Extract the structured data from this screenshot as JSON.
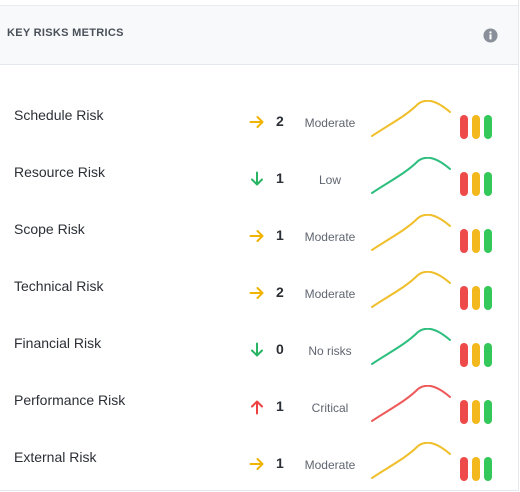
{
  "header": {
    "title": "KEY RISKS METRICS",
    "info_icon": "info-icon"
  },
  "colors": {
    "moderate": "#f0bf2c",
    "low": "#2ebf7f",
    "critical": "#ee5a5a",
    "arrow_moderate": "#f0b400",
    "arrow_low": "#28b463",
    "arrow_critical": "#ee4040",
    "bar_red": "#ee4a4a",
    "bar_yellow": "#f2b81d",
    "bar_green": "#34c759"
  },
  "risks": [
    {
      "name": "Schedule Risk",
      "trend": "right",
      "trend_icon": "arrow-right-icon",
      "count": "2",
      "level": "Moderate",
      "severity": "moderate"
    },
    {
      "name": "Resource Risk",
      "trend": "down",
      "trend_icon": "arrow-down-icon",
      "count": "1",
      "level": "Low",
      "severity": "low"
    },
    {
      "name": "Scope Risk",
      "trend": "right",
      "trend_icon": "arrow-right-icon",
      "count": "1",
      "level": "Moderate",
      "severity": "moderate"
    },
    {
      "name": "Technical Risk",
      "trend": "right",
      "trend_icon": "arrow-right-icon",
      "count": "2",
      "level": "Moderate",
      "severity": "moderate"
    },
    {
      "name": "Financial Risk",
      "trend": "down",
      "trend_icon": "arrow-down-icon",
      "count": "0",
      "level": "No risks",
      "severity": "low"
    },
    {
      "name": "Performance Risk",
      "trend": "up",
      "trend_icon": "arrow-up-icon",
      "count": "1",
      "level": "Critical",
      "severity": "critical"
    },
    {
      "name": "External Risk",
      "trend": "right",
      "trend_icon": "arrow-right-icon",
      "count": "1",
      "level": "Moderate",
      "severity": "moderate"
    }
  ]
}
